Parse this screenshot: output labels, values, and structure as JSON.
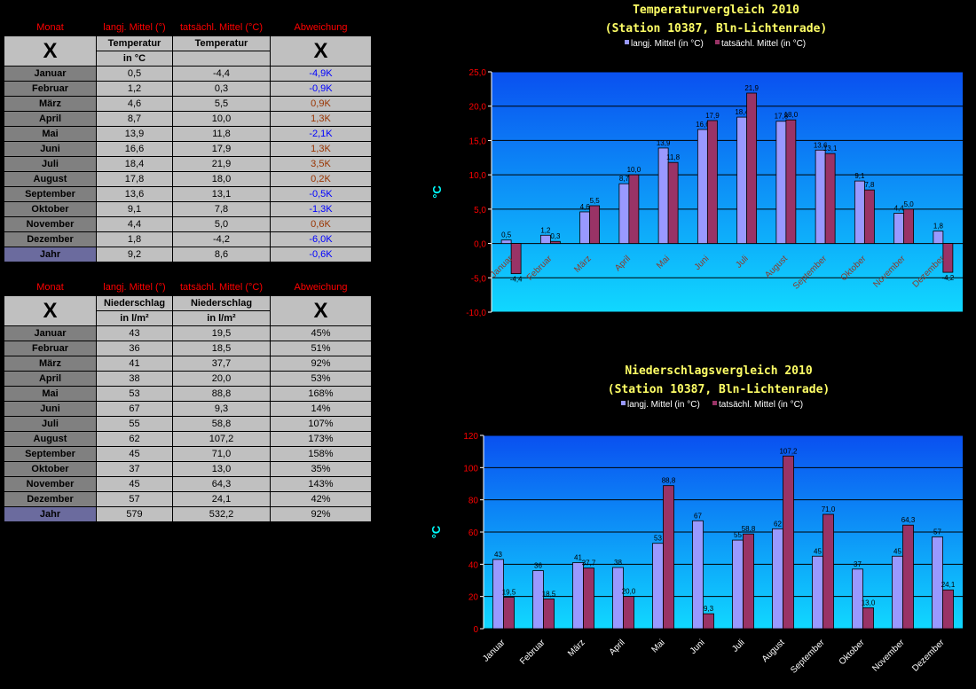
{
  "colors": {
    "long_term": "#9999ff",
    "actual": "#993366",
    "plot_top": "#0a50f0",
    "plot_bottom": "#10d8ff",
    "deviation_pos": "#993300",
    "deviation_neg": "#0000ff"
  },
  "temp_table": {
    "headers": [
      "Monat",
      "langj. Mittel (°)",
      "tatsächl. Mittel (°C)",
      "Abweichung"
    ],
    "x_left": "X",
    "x_right": "X",
    "sub1_top": "Temperatur",
    "sub1_bottom": "in °C",
    "sub2_top": "Temperatur",
    "sub2_bottom": "",
    "rows": [
      {
        "month": "Januar",
        "mean": "0,5",
        "actual": "-4,4",
        "dev": "-4,9K",
        "sign": "neg"
      },
      {
        "month": "Februar",
        "mean": "1,2",
        "actual": "0,3",
        "dev": "-0,9K",
        "sign": "neg"
      },
      {
        "month": "März",
        "mean": "4,6",
        "actual": "5,5",
        "dev": "0,9K",
        "sign": "pos"
      },
      {
        "month": "April",
        "mean": "8,7",
        "actual": "10,0",
        "dev": "1,3K",
        "sign": "pos"
      },
      {
        "month": "Mai",
        "mean": "13,9",
        "actual": "11,8",
        "dev": "-2,1K",
        "sign": "neg"
      },
      {
        "month": "Juni",
        "mean": "16,6",
        "actual": "17,9",
        "dev": "1,3K",
        "sign": "pos"
      },
      {
        "month": "Juli",
        "mean": "18,4",
        "actual": "21,9",
        "dev": "3,5K",
        "sign": "pos"
      },
      {
        "month": "August",
        "mean": "17,8",
        "actual": "18,0",
        "dev": "0,2K",
        "sign": "pos"
      },
      {
        "month": "September",
        "mean": "13,6",
        "actual": "13,1",
        "dev": "-0,5K",
        "sign": "neg"
      },
      {
        "month": "Oktober",
        "mean": "9,1",
        "actual": "7,8",
        "dev": "-1,3K",
        "sign": "neg"
      },
      {
        "month": "November",
        "mean": "4,4",
        "actual": "5,0",
        "dev": "0,6K",
        "sign": "pos"
      },
      {
        "month": "Dezember",
        "mean": "1,8",
        "actual": "-4,2",
        "dev": "-6,0K",
        "sign": "neg"
      },
      {
        "month": "Jahr",
        "mean": "9,2",
        "actual": "8,6",
        "dev": "-0,6K",
        "sign": "neg",
        "year": true
      }
    ]
  },
  "precip_table": {
    "headers": [
      "Monat",
      "langj. Mittel (°)",
      "tatsächl. Mittel (°C)",
      "Abweichung"
    ],
    "x_left": "X",
    "x_right": "X",
    "sub1_top": "Niederschlag",
    "sub1_bottom": "in l/m²",
    "sub2_top": "Niederschlag",
    "sub2_bottom": "in l/m²",
    "rows": [
      {
        "month": "Januar",
        "mean": "43",
        "actual": "19,5",
        "dev": "45%"
      },
      {
        "month": "Februar",
        "mean": "36",
        "actual": "18,5",
        "dev": "51%"
      },
      {
        "month": "März",
        "mean": "41",
        "actual": "37,7",
        "dev": "92%"
      },
      {
        "month": "April",
        "mean": "38",
        "actual": "20,0",
        "dev": "53%"
      },
      {
        "month": "Mai",
        "mean": "53",
        "actual": "88,8",
        "dev": "168%"
      },
      {
        "month": "Juni",
        "mean": "67",
        "actual": "9,3",
        "dev": "14%"
      },
      {
        "month": "Juli",
        "mean": "55",
        "actual": "58,8",
        "dev": "107%"
      },
      {
        "month": "August",
        "mean": "62",
        "actual": "107,2",
        "dev": "173%"
      },
      {
        "month": "September",
        "mean": "45",
        "actual": "71,0",
        "dev": "158%"
      },
      {
        "month": "Oktober",
        "mean": "37",
        "actual": "13,0",
        "dev": "35%"
      },
      {
        "month": "November",
        "mean": "45",
        "actual": "64,3",
        "dev": "143%"
      },
      {
        "month": "Dezember",
        "mean": "57",
        "actual": "24,1",
        "dev": "42%"
      },
      {
        "month": "Jahr",
        "mean": "579",
        "actual": "532,2",
        "dev": "92%",
        "year": true
      }
    ]
  },
  "chart_data": [
    {
      "type": "bar",
      "title": "Temperaturvergleich 2010",
      "subtitle": "(Station 10387, Bln-Lichtenrade)",
      "ylabel": "°C",
      "ylim": [
        -10,
        25
      ],
      "yticks": [
        "-10,0",
        "-5,0",
        "0,0",
        "5,0",
        "10,0",
        "15,0",
        "20,0",
        "25,0"
      ],
      "categories": [
        "Januar",
        "Februar",
        "März",
        "April",
        "Mai",
        "Juni",
        "Juli",
        "August",
        "September",
        "Oktober",
        "November",
        "Dezember"
      ],
      "series": [
        {
          "name": "langj. Mittel (in °C)",
          "values": [
            0.5,
            1.2,
            4.6,
            8.7,
            13.9,
            16.6,
            18.4,
            17.8,
            13.6,
            9.1,
            4.4,
            1.8
          ],
          "labels": [
            "0,5",
            "1,2",
            "4,6",
            "8,7",
            "13,9",
            "16,6",
            "18,4",
            "17,8",
            "13,6",
            "9,1",
            "4,4",
            "1,8"
          ]
        },
        {
          "name": "tatsächl. Mittel (in °C)",
          "values": [
            -4.4,
            0.3,
            5.5,
            10.0,
            11.8,
            17.9,
            21.9,
            18.0,
            13.1,
            7.8,
            5.0,
            -4.2
          ],
          "labels": [
            "-4,4",
            "0,3",
            "5,5",
            "10,0",
            "11,8",
            "17,9",
            "21,9",
            "18,0",
            "13,1",
            "7,8",
            "5,0",
            "-4,2"
          ]
        }
      ],
      "legend": "top",
      "grid": true
    },
    {
      "type": "bar",
      "title": "Niederschlagsvergleich 2010",
      "subtitle": "(Station 10387, Bln-Lichtenrade)",
      "ylabel": "°C",
      "ylim": [
        0,
        120
      ],
      "yticks": [
        "0",
        "20",
        "40",
        "60",
        "80",
        "100",
        "120"
      ],
      "categories": [
        "Januar",
        "Februar",
        "März",
        "April",
        "Mai",
        "Juni",
        "Juli",
        "August",
        "September",
        "Oktober",
        "November",
        "Dezember"
      ],
      "series": [
        {
          "name": "langj. Mittel (in °C)",
          "values": [
            43,
            36,
            41,
            38,
            53,
            67,
            55,
            62,
            45,
            37,
            45,
            57
          ],
          "labels": [
            "43",
            "36",
            "41",
            "38",
            "53",
            "67",
            "55",
            "62",
            "45",
            "37",
            "45",
            "57"
          ]
        },
        {
          "name": "tatsächl. Mittel (in °C)",
          "values": [
            19.5,
            18.5,
            37.7,
            20.0,
            88.8,
            9.3,
            58.8,
            107.2,
            71.0,
            13.0,
            64.3,
            24.1
          ],
          "labels": [
            "19,5",
            "18,5",
            "37,7",
            "20,0",
            "88,8",
            "9,3",
            "58,8",
            "107,2",
            "71,0",
            "13,0",
            "64,3",
            "24,1"
          ]
        }
      ],
      "legend": "top",
      "grid": true
    }
  ]
}
